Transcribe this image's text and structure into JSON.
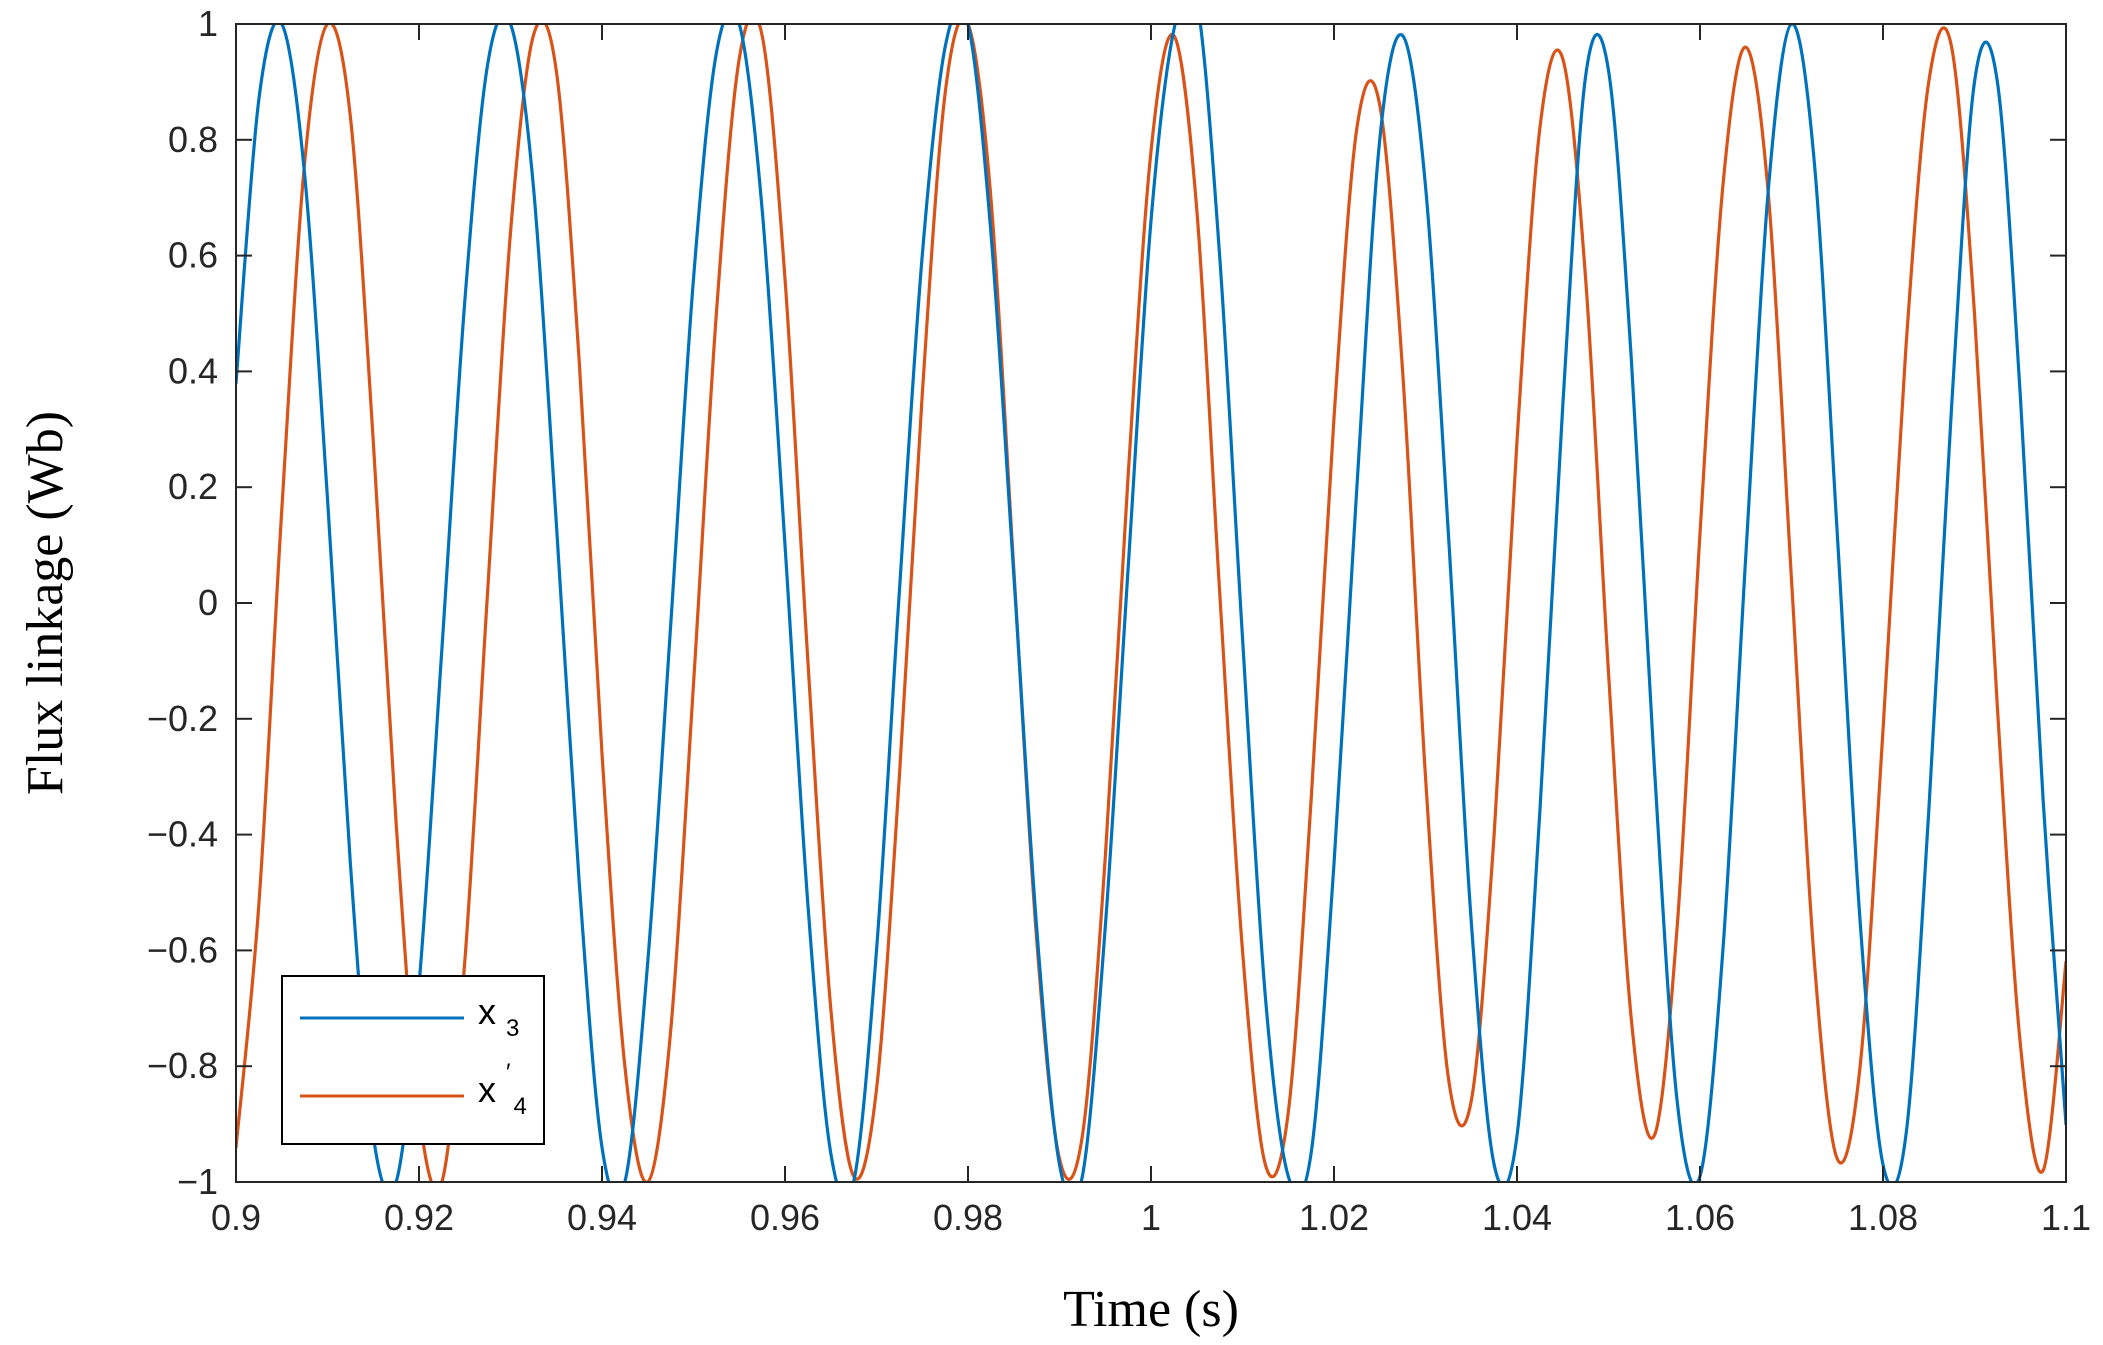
{
  "chart_data": {
    "type": "line",
    "title": "",
    "xlabel": "Time (s)",
    "ylabel": "Flux linkage (Wb)",
    "xlim": [
      0.9,
      1.1
    ],
    "ylim": [
      -1,
      1
    ],
    "xticks": [
      0.9,
      0.92,
      0.94,
      0.96,
      0.98,
      1.0,
      1.02,
      1.04,
      1.06,
      1.08,
      1.1
    ],
    "xtick_labels": [
      "0.9",
      "0.92",
      "0.94",
      "0.96",
      "0.98",
      "1",
      "1.02",
      "1.04",
      "1.06",
      "1.08",
      "1.1"
    ],
    "yticks": [
      -1,
      -0.8,
      -0.6,
      -0.4,
      -0.2,
      0,
      0.2,
      0.4,
      0.6,
      0.8,
      1
    ],
    "ytick_labels": [
      "−1",
      "−0.8",
      "−0.6",
      "−0.4",
      "−0.2",
      "0",
      "0.2",
      "0.4",
      "0.6",
      "0.8",
      "1"
    ],
    "grid": false,
    "legend_position": "bottom-left",
    "colors": {
      "x3": "#0072BD",
      "x4": "#D95319",
      "axis": "#262626"
    },
    "series": [
      {
        "name": "x3",
        "legend_main": "x",
        "legend_sub": "3",
        "legend_sup": "",
        "color": "#0072BD",
        "points": [
          [
            0.9,
            0.38
          ],
          [
            0.9025,
            0.87
          ],
          [
            0.905,
            1.0
          ],
          [
            0.9075,
            0.74
          ],
          [
            0.91,
            0.18
          ],
          [
            0.9125,
            -0.45
          ],
          [
            0.915,
            -0.92
          ],
          [
            0.9175,
            -1.0
          ],
          [
            0.92,
            -0.66
          ],
          [
            0.9225,
            -0.08
          ],
          [
            0.925,
            0.52
          ],
          [
            0.9275,
            0.93
          ],
          [
            0.93,
            1.0
          ],
          [
            0.9325,
            0.72
          ],
          [
            0.935,
            0.14
          ],
          [
            0.9375,
            -0.48
          ],
          [
            0.94,
            -0.94
          ],
          [
            0.9425,
            -1.0
          ],
          [
            0.945,
            -0.62
          ],
          [
            0.9475,
            -0.04
          ],
          [
            0.95,
            0.56
          ],
          [
            0.9525,
            0.95
          ],
          [
            0.955,
            1.0
          ],
          [
            0.9575,
            0.68
          ],
          [
            0.96,
            0.1
          ],
          [
            0.9625,
            -0.52
          ],
          [
            0.965,
            -0.95
          ],
          [
            0.9675,
            -1.0
          ],
          [
            0.97,
            -0.6
          ],
          [
            0.9725,
            0.02
          ],
          [
            0.975,
            0.6
          ],
          [
            0.9775,
            0.96
          ],
          [
            0.98,
            1.0
          ],
          [
            0.9825,
            0.64
          ],
          [
            0.985,
            0.05
          ],
          [
            0.9875,
            -0.56
          ],
          [
            0.99,
            -0.97
          ],
          [
            0.9925,
            -0.99
          ],
          [
            0.995,
            -0.56
          ],
          [
            0.9975,
            0.06
          ],
          [
            1.0,
            0.66
          ],
          [
            1.0025,
            0.99
          ],
          [
            1.005,
            1.04
          ],
          [
            1.0075,
            0.6
          ],
          [
            1.01,
            -0.06
          ],
          [
            1.0125,
            -0.68
          ],
          [
            1.015,
            -0.99
          ],
          [
            1.0175,
            -0.95
          ],
          [
            1.02,
            -0.45
          ],
          [
            1.0225,
            0.2
          ],
          [
            1.025,
            0.8
          ],
          [
            1.0275,
            0.98
          ],
          [
            1.03,
            0.72
          ],
          [
            1.0325,
            0.12
          ],
          [
            1.035,
            -0.55
          ],
          [
            1.0375,
            -0.97
          ],
          [
            1.04,
            -0.92
          ],
          [
            1.0425,
            -0.36
          ],
          [
            1.045,
            0.34
          ],
          [
            1.0475,
            0.91
          ],
          [
            1.05,
            0.92
          ],
          [
            1.0525,
            0.42
          ],
          [
            1.055,
            -0.28
          ],
          [
            1.0575,
            -0.86
          ],
          [
            1.06,
            -0.99
          ],
          [
            1.0625,
            -0.6
          ],
          [
            1.065,
            0.08
          ],
          [
            1.0675,
            0.72
          ],
          [
            1.07,
            1.0
          ],
          [
            1.0725,
            0.76
          ],
          [
            1.075,
            0.12
          ],
          [
            1.0775,
            -0.55
          ],
          [
            1.08,
            -0.97
          ],
          [
            1.0825,
            -0.92
          ],
          [
            1.085,
            -0.36
          ],
          [
            1.0875,
            0.34
          ],
          [
            1.09,
            0.9
          ],
          [
            1.0925,
            0.9
          ],
          [
            1.095,
            0.36
          ],
          [
            1.0975,
            -0.34
          ],
          [
            1.1,
            -0.9
          ]
        ]
      },
      {
        "name": "x4'",
        "legend_main": "x",
        "legend_sub": "4",
        "legend_sup": "′",
        "color": "#D95319",
        "points": [
          [
            0.9,
            -0.94
          ],
          [
            0.9025,
            -0.52
          ],
          [
            0.905,
            0.16
          ],
          [
            0.9075,
            0.76
          ],
          [
            0.91,
            1.0
          ],
          [
            0.9125,
            0.84
          ],
          [
            0.915,
            0.28
          ],
          [
            0.9175,
            -0.38
          ],
          [
            0.92,
            -0.88
          ],
          [
            0.9225,
            -1.0
          ],
          [
            0.925,
            -0.62
          ],
          [
            0.9275,
            0.02
          ],
          [
            0.93,
            0.64
          ],
          [
            0.9325,
            0.98
          ],
          [
            0.935,
            0.92
          ],
          [
            0.9375,
            0.42
          ],
          [
            0.94,
            -0.26
          ],
          [
            0.9425,
            -0.8
          ],
          [
            0.945,
            -1.0
          ],
          [
            0.9475,
            -0.74
          ],
          [
            0.95,
            -0.14
          ],
          [
            0.9525,
            0.5
          ],
          [
            0.955,
            0.94
          ],
          [
            0.9575,
            0.98
          ],
          [
            0.96,
            0.56
          ],
          [
            0.9625,
            -0.1
          ],
          [
            0.965,
            -0.7
          ],
          [
            0.9675,
            -0.99
          ],
          [
            0.97,
            -0.84
          ],
          [
            0.9725,
            -0.3
          ],
          [
            0.975,
            0.36
          ],
          [
            0.9775,
            0.88
          ],
          [
            0.98,
            1.0
          ],
          [
            0.9825,
            0.7
          ],
          [
            0.985,
            0.06
          ],
          [
            0.9875,
            -0.58
          ],
          [
            0.99,
            -0.96
          ],
          [
            0.9925,
            -0.92
          ],
          [
            0.995,
            -0.44
          ],
          [
            0.9975,
            0.22
          ],
          [
            1.0,
            0.78
          ],
          [
            1.0025,
            0.98
          ],
          [
            1.005,
            0.68
          ],
          [
            1.0075,
            0.02
          ],
          [
            1.01,
            -0.6
          ],
          [
            1.0125,
            -0.97
          ],
          [
            1.015,
            -0.88
          ],
          [
            1.0175,
            -0.34
          ],
          [
            1.02,
            0.32
          ],
          [
            1.0225,
            0.82
          ],
          [
            1.025,
            0.86
          ],
          [
            1.0275,
            0.4
          ],
          [
            1.03,
            -0.3
          ],
          [
            1.0325,
            -0.82
          ],
          [
            1.035,
            -0.86
          ],
          [
            1.0375,
            -0.4
          ],
          [
            1.04,
            0.28
          ],
          [
            1.0425,
            0.82
          ],
          [
            1.045,
            0.94
          ],
          [
            1.0475,
            0.56
          ],
          [
            1.05,
            -0.12
          ],
          [
            1.0525,
            -0.72
          ],
          [
            1.055,
            -0.92
          ],
          [
            1.0575,
            -0.56
          ],
          [
            1.06,
            0.12
          ],
          [
            1.0625,
            0.72
          ],
          [
            1.065,
            0.96
          ],
          [
            1.0675,
            0.7
          ],
          [
            1.07,
            0.04
          ],
          [
            1.0725,
            -0.62
          ],
          [
            1.075,
            -0.96
          ],
          [
            1.0775,
            -0.8
          ],
          [
            1.08,
            -0.22
          ],
          [
            1.0825,
            0.44
          ],
          [
            1.085,
            0.9
          ],
          [
            1.0875,
            0.96
          ],
          [
            1.09,
            0.5
          ],
          [
            1.0925,
            -0.18
          ],
          [
            1.095,
            -0.76
          ],
          [
            1.0975,
            -0.98
          ],
          [
            1.1,
            -0.62
          ]
        ]
      }
    ]
  }
}
